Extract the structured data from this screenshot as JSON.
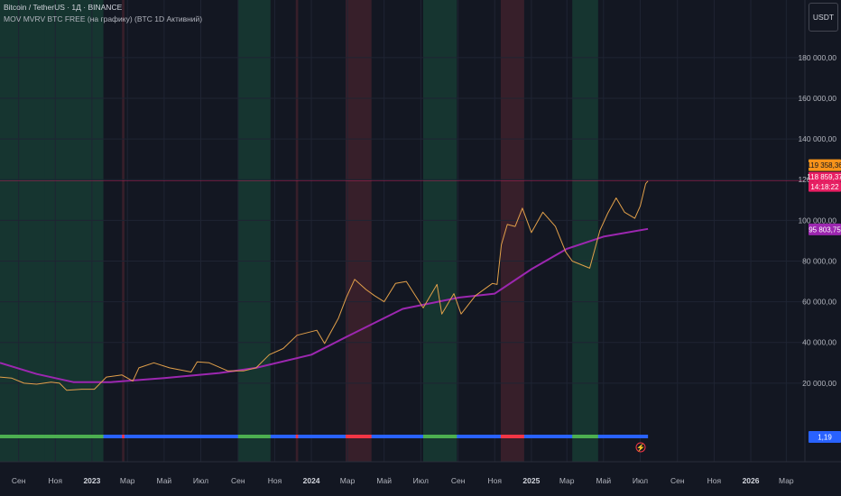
{
  "header": {
    "line1": "Bitcoin / TetherUS · 1Д · BINANCE",
    "line2": "MOV MVRV BTC FREE (на графику) (BTC 1D Активний)"
  },
  "currency_button": "USDT",
  "price_tags": {
    "last_price": "119 358,36",
    "prev_price": "118 859,37",
    "countdown": "14:18:22",
    "ma_value": "95 803,75",
    "indicator_value": "1,19"
  },
  "colors": {
    "background": "#131722",
    "price_line": "#e2a04a",
    "ma_line": "#9c27b0",
    "zone_green": "#1e6e4a",
    "zone_red": "#7a2d38",
    "band_blue": "#2962ff",
    "band_green": "#4caf50",
    "band_red": "#f23645",
    "last_tag": "#f7931a",
    "prev_tag": "#e91e63"
  },
  "chart_data": {
    "type": "line",
    "title": "Bitcoin / TetherUS · 1Д · BINANCE",
    "x_range": [
      "2022-08-01",
      "2026-04-01"
    ],
    "y_range": [
      0,
      195000
    ],
    "y_ticks": [
      20000,
      40000,
      60000,
      80000,
      100000,
      120000,
      140000,
      160000,
      180000
    ],
    "y_tick_labels": [
      "20 000,00",
      "40 000,00",
      "60 000,00",
      "80 000,00",
      "100 000,00",
      "120 000,00",
      "140 000,00",
      "160 000,00",
      "180 000,00"
    ],
    "x_ticks": [
      {
        "date": "2022-09-01",
        "label": "Сен",
        "bold": false
      },
      {
        "date": "2022-11-01",
        "label": "Ноя",
        "bold": false
      },
      {
        "date": "2023-01-01",
        "label": "2023",
        "bold": true
      },
      {
        "date": "2023-03-01",
        "label": "Мар",
        "bold": false
      },
      {
        "date": "2023-05-01",
        "label": "Май",
        "bold": false
      },
      {
        "date": "2023-07-01",
        "label": "Июл",
        "bold": false
      },
      {
        "date": "2023-09-01",
        "label": "Сен",
        "bold": false
      },
      {
        "date": "2023-11-01",
        "label": "Ноя",
        "bold": false
      },
      {
        "date": "2024-01-01",
        "label": "2024",
        "bold": true
      },
      {
        "date": "2024-03-01",
        "label": "Мар",
        "bold": false
      },
      {
        "date": "2024-05-01",
        "label": "Май",
        "bold": false
      },
      {
        "date": "2024-07-01",
        "label": "Июл",
        "bold": false
      },
      {
        "date": "2024-09-01",
        "label": "Сен",
        "bold": false
      },
      {
        "date": "2024-11-01",
        "label": "Ноя",
        "bold": false
      },
      {
        "date": "2025-01-01",
        "label": "2025",
        "bold": true
      },
      {
        "date": "2025-03-01",
        "label": "Мар",
        "bold": false
      },
      {
        "date": "2025-05-01",
        "label": "Май",
        "bold": false
      },
      {
        "date": "2025-07-01",
        "label": "Июл",
        "bold": false
      },
      {
        "date": "2025-09-01",
        "label": "Сен",
        "bold": false
      },
      {
        "date": "2025-11-01",
        "label": "Ноя",
        "bold": false
      },
      {
        "date": "2026-01-01",
        "label": "2026",
        "bold": true
      },
      {
        "date": "2026-03-01",
        "label": "Мар",
        "bold": false
      }
    ],
    "series": [
      {
        "key": "price",
        "x": [
          "2022-08-01",
          "2022-08-20",
          "2022-09-10",
          "2022-10-01",
          "2022-10-25",
          "2022-11-08",
          "2022-11-20",
          "2022-12-15",
          "2023-01-05",
          "2023-01-25",
          "2023-02-20",
          "2023-03-10",
          "2023-03-20",
          "2023-04-14",
          "2023-05-10",
          "2023-06-15",
          "2023-06-25",
          "2023-07-15",
          "2023-08-15",
          "2023-09-10",
          "2023-10-01",
          "2023-10-23",
          "2023-11-15",
          "2023-12-08",
          "2024-01-10",
          "2024-01-23",
          "2024-02-15",
          "2024-02-28",
          "2024-03-13",
          "2024-04-01",
          "2024-04-15",
          "2024-05-01",
          "2024-05-20",
          "2024-06-07",
          "2024-07-05",
          "2024-07-28",
          "2024-08-05",
          "2024-08-25",
          "2024-09-06",
          "2024-09-30",
          "2024-10-28",
          "2024-11-05",
          "2024-11-12",
          "2024-11-22",
          "2024-12-05",
          "2024-12-17",
          "2025-01-01",
          "2025-01-20",
          "2025-02-10",
          "2025-02-27",
          "2025-03-10",
          "2025-04-08",
          "2025-04-25",
          "2025-05-08",
          "2025-05-22",
          "2025-06-05",
          "2025-06-22",
          "2025-07-01",
          "2025-07-10",
          "2025-07-14"
        ],
        "values": [
          23000,
          22500,
          20000,
          19500,
          20500,
          20000,
          16500,
          17000,
          17000,
          23000,
          24000,
          21000,
          27500,
          30000,
          27500,
          25500,
          30500,
          30000,
          26000,
          26000,
          27500,
          34000,
          37000,
          43500,
          46000,
          39500,
          52000,
          62000,
          71000,
          66000,
          63000,
          60000,
          69000,
          70000,
          57000,
          68500,
          54000,
          64000,
          54000,
          63000,
          69000,
          68500,
          88000,
          98000,
          97000,
          106000,
          94000,
          104000,
          97000,
          84500,
          80000,
          76500,
          95000,
          103500,
          111000,
          104000,
          101000,
          107000,
          118000,
          119358
        ]
      },
      {
        "key": "ma",
        "x": [
          "2022-08-01",
          "2022-10-01",
          "2022-12-01",
          "2023-02-01",
          "2023-05-01",
          "2023-08-01",
          "2023-10-01",
          "2024-01-01",
          "2024-03-01",
          "2024-06-01",
          "2024-09-01",
          "2024-11-01",
          "2025-01-01",
          "2025-03-01",
          "2025-05-01",
          "2025-07-14"
        ],
        "values": [
          30000,
          24500,
          20500,
          20500,
          22500,
          25000,
          27500,
          34000,
          43000,
          56500,
          62000,
          64000,
          76000,
          86000,
          92000,
          95803
        ]
      }
    ],
    "zones": [
      {
        "from": "2022-08-01",
        "to": "2022-10-15",
        "kind": "green"
      },
      {
        "from": "2022-10-15",
        "to": "2023-01-20",
        "kind": "green"
      },
      {
        "from": "2023-02-20",
        "to": "2023-02-24",
        "kind": "red"
      },
      {
        "from": "2023-09-01",
        "to": "2023-10-25",
        "kind": "green"
      },
      {
        "from": "2023-12-06",
        "to": "2023-12-10",
        "kind": "red"
      },
      {
        "from": "2024-02-27",
        "to": "2024-04-10",
        "kind": "red"
      },
      {
        "from": "2024-07-05",
        "to": "2024-08-30",
        "kind": "green"
      },
      {
        "from": "2024-11-11",
        "to": "2024-12-20",
        "kind": "red"
      },
      {
        "from": "2025-03-10",
        "to": "2025-04-22",
        "kind": "green"
      }
    ]
  }
}
